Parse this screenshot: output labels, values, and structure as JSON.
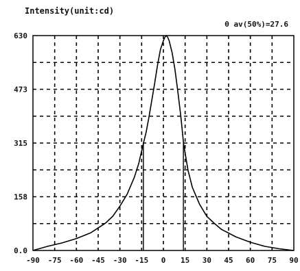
{
  "chart_data": {
    "type": "line",
    "title": "Intensity(unit:cd)",
    "annotation": "θ av(50%)=27.6",
    "xlim": [
      -90,
      90
    ],
    "ylim": [
      0,
      630
    ],
    "x_ticks": [
      -90,
      -75,
      -60,
      -45,
      -30,
      -15,
      0,
      15,
      30,
      45,
      60,
      75,
      90
    ],
    "x_tick_labels": [
      "-90",
      "-75",
      "-60",
      "-45",
      "-30",
      "-15",
      "0",
      "15",
      "30",
      "45",
      "60",
      "75",
      "90"
    ],
    "y_ticks": [
      0,
      158,
      315,
      473,
      630
    ],
    "y_tick_labels": [
      "0.0",
      "158",
      "315",
      "473",
      "630"
    ],
    "grid": true,
    "half_intensity_markers": [
      -13.8,
      13.8
    ],
    "series": [
      {
        "x": [
          -90,
          -80,
          -70,
          -60,
          -50,
          -40,
          -35,
          -30,
          -25,
          -20,
          -17,
          -14,
          -12,
          -10,
          -8,
          -6,
          -4,
          -2,
          0,
          1,
          2,
          3,
          4,
          6,
          8,
          10,
          12,
          14,
          17,
          20,
          25,
          30,
          35,
          40,
          50,
          60,
          70,
          80,
          90
        ],
        "y": [
          0,
          12,
          22,
          35,
          52,
          80,
          100,
          130,
          165,
          215,
          255,
          310,
          345,
          390,
          440,
          490,
          545,
          590,
          615,
          625,
          630,
          625,
          615,
          580,
          530,
          465,
          395,
          310,
          235,
          185,
          135,
          100,
          80,
          62,
          40,
          24,
          12,
          5,
          0
        ]
      }
    ]
  }
}
